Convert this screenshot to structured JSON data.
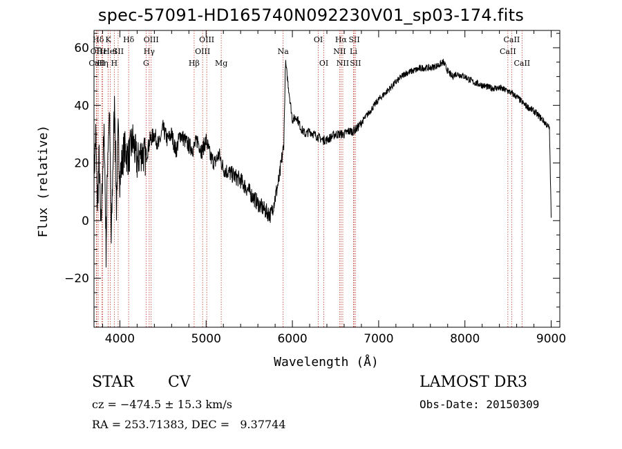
{
  "chart_data": {
    "type": "line",
    "title": "spec-57091-HD165740N092230V01_sp03-174.fits",
    "xlabel": "Wavelength (Å)",
    "ylabel": "Flux (relative)",
    "xlim": [
      3700,
      9100
    ],
    "ylim": [
      -37,
      66
    ],
    "x_ticks": [
      4000,
      5000,
      6000,
      7000,
      8000,
      9000
    ],
    "y_ticks": [
      -20,
      0,
      20,
      40,
      60
    ],
    "grid": false,
    "series": [
      {
        "x": [
          3700,
          3720,
          3740,
          3760,
          3780,
          3800,
          3820,
          3840,
          3860,
          3880,
          3900,
          3920,
          3940,
          3960,
          3980,
          4000,
          4050,
          4100,
          4150,
          4200,
          4250,
          4300,
          4350,
          4400,
          4450,
          4500,
          4550,
          4600,
          4650,
          4700,
          4750,
          4800,
          4850,
          4900,
          4950,
          5000,
          5050,
          5100,
          5150,
          5200,
          5300,
          5400,
          5500,
          5600,
          5700,
          5750,
          5800,
          5850,
          5880,
          5900,
          5920,
          5940,
          5960,
          5980,
          6000,
          6050,
          6100,
          6150,
          6200,
          6250,
          6300,
          6350,
          6400,
          6450,
          6500,
          6550,
          6600,
          6650,
          6700,
          6750,
          6800,
          6900,
          7000,
          7100,
          7200,
          7300,
          7400,
          7500,
          7600,
          7700,
          7750,
          7800,
          7850,
          7900,
          8000,
          8100,
          8200,
          8300,
          8400,
          8500,
          8600,
          8700,
          8800,
          8900,
          8980,
          9000
        ],
        "y": [
          15,
          30,
          5,
          22,
          -5,
          18,
          30,
          -10,
          25,
          38,
          -8,
          20,
          42,
          5,
          30,
          15,
          25,
          22,
          28,
          20,
          24,
          22,
          28,
          30,
          26,
          32,
          28,
          30,
          24,
          30,
          28,
          26,
          25,
          28,
          24,
          28,
          22,
          20,
          23,
          18,
          16,
          14,
          10,
          6,
          3,
          2,
          8,
          15,
          22,
          26,
          55,
          50,
          45,
          40,
          35,
          36,
          32,
          30,
          31,
          30,
          29,
          28,
          28,
          29,
          30,
          30,
          30,
          31,
          31,
          32,
          34,
          38,
          42,
          45,
          48,
          51,
          52,
          53,
          53,
          54,
          55,
          52,
          50,
          51,
          50,
          48,
          47,
          46,
          46,
          45,
          43,
          40,
          38,
          35,
          32,
          1
        ]
      }
    ],
    "line_markers": [
      {
        "label": "Hδ",
        "wl": 3750,
        "row": 0
      },
      {
        "label": "OII",
        "wl": 3728,
        "row": 1
      },
      {
        "label": "CaII",
        "wl": 3734,
        "row": 2
      },
      {
        "label": "Hε",
        "wl": 3790,
        "row": 1
      },
      {
        "label": "Hη",
        "wl": 3800,
        "row": 2
      },
      {
        "label": "K",
        "wl": 3865,
        "row": 0
      },
      {
        "label": "HeI",
        "wl": 3888,
        "row": 1
      },
      {
        "label": "H",
        "wl": 3935,
        "row": 2
      },
      {
        "label": "SII",
        "wl": 3980,
        "row": 1
      },
      {
        "label": "Hδ",
        "wl": 4102,
        "row": 0
      },
      {
        "label": "OIII",
        "wl": 4363,
        "row": 0
      },
      {
        "label": "Hγ",
        "wl": 4340,
        "row": 1
      },
      {
        "label": "G",
        "wl": 4304,
        "row": 2
      },
      {
        "label": "OIII",
        "wl": 5007,
        "row": 0
      },
      {
        "label": "OIII",
        "wl": 4959,
        "row": 1
      },
      {
        "label": "Hβ",
        "wl": 4861,
        "row": 2
      },
      {
        "label": "Mg",
        "wl": 5175,
        "row": 2
      },
      {
        "label": "Na",
        "wl": 5893,
        "row": 1
      },
      {
        "label": "OI",
        "wl": 6300,
        "row": 0
      },
      {
        "label": "OI",
        "wl": 6364,
        "row": 2
      },
      {
        "label": "Hα",
        "wl": 6563,
        "row": 0
      },
      {
        "label": "NII",
        "wl": 6548,
        "row": 1
      },
      {
        "label": "NII",
        "wl": 6584,
        "row": 2
      },
      {
        "label": "SII",
        "wl": 6717,
        "row": 0
      },
      {
        "label": "Li",
        "wl": 6708,
        "row": 1
      },
      {
        "label": "SII",
        "wl": 6731,
        "row": 2
      },
      {
        "label": "CaII",
        "wl": 8498,
        "row": 1
      },
      {
        "label": "CaII",
        "wl": 8542,
        "row": 0
      },
      {
        "label": "CaII",
        "wl": 8662,
        "row": 2
      }
    ]
  },
  "info": {
    "object_class": "STAR",
    "subclass": "CV",
    "cz": "cz = −474.5 ± 15.3 km/s",
    "coords": "RA = 253.71383, DEC =   9.37744",
    "survey": "LAMOST DR3",
    "obs_date": "Obs-Date: 20150309"
  }
}
